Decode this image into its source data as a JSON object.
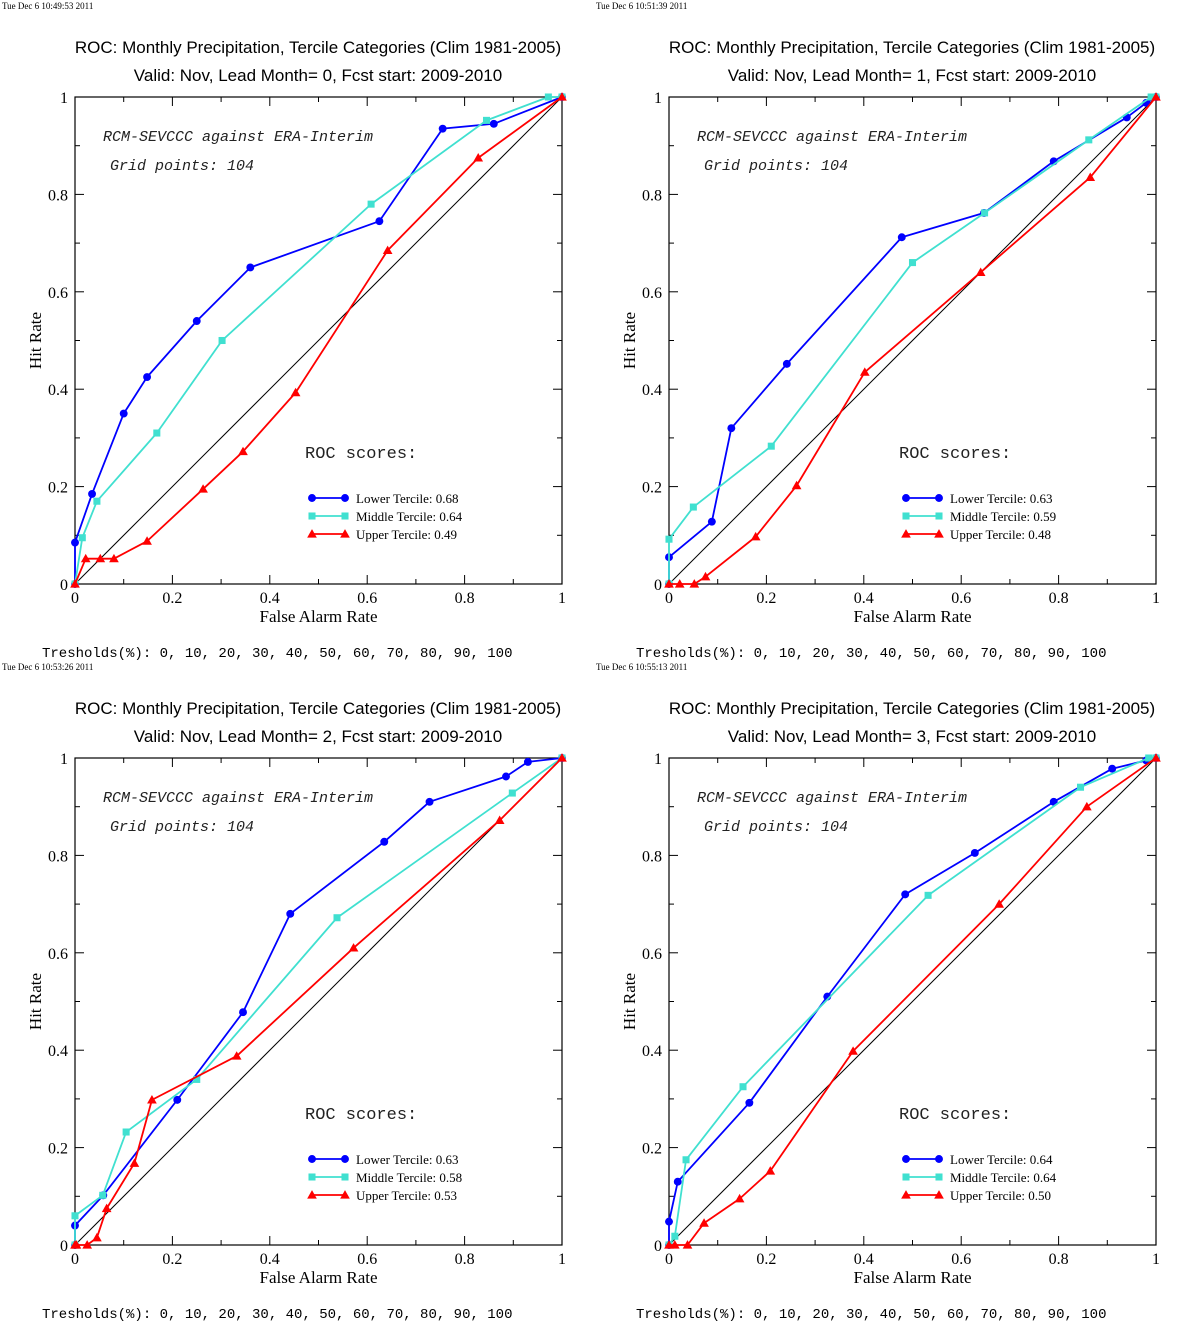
{
  "colors": {
    "lower": "#0000ff",
    "middle": "#40e0d0",
    "upper": "#ff0000",
    "diagonal": "#000000",
    "frame": "#000000",
    "background": "#ffffff"
  },
  "marker_icons": {
    "lower": "circle-marker-icon",
    "middle": "square-marker-icon",
    "upper": "triangle-marker-icon"
  },
  "chart_data": [
    {
      "type": "line",
      "timestamp": "Tue Dec  6 10:49:53 2011",
      "title": "ROC: Monthly Precipitation, Tercile Categories (Clim 1981-2005)",
      "subtitle": "Valid: Nov, Lead Month= 0, Fcst start: 2009-2010",
      "xlabel": "False Alarm Rate",
      "ylabel": "Hit Rate",
      "xlim": [
        0,
        1
      ],
      "ylim": [
        0,
        1
      ],
      "xticks": [
        "0",
        "0.2",
        "0.4",
        "0.6",
        "0.8",
        "1"
      ],
      "yticks": [
        "0",
        "0.2",
        "0.4",
        "0.6",
        "0.8",
        "1"
      ],
      "grid": false,
      "legend_position": "bottom-right",
      "annotation_model": "RCM-SEVCCC against ERA-Interim",
      "annotation_grid": "Grid points:  104",
      "annotation_scores": "ROC scores:",
      "footer": "Tresholds(%): 0, 10, 20, 30, 40, 50, 60, 70, 80, 90, 100",
      "series": [
        {
          "key": "lower",
          "name": "Lower Tercile: 0.68",
          "marker": "circle",
          "x": [
            0,
            0,
            0.035,
            0.1,
            0.148,
            0.25,
            0.36,
            0.625,
            0.755,
            0.86,
            1
          ],
          "y": [
            0,
            0.085,
            0.185,
            0.35,
            0.425,
            0.54,
            0.65,
            0.745,
            0.935,
            0.945,
            1
          ]
        },
        {
          "key": "middle",
          "name": "Middle Tercile: 0.64",
          "marker": "square",
          "x": [
            0,
            0.015,
            0.045,
            0.168,
            0.302,
            0.608,
            0.845,
            0.972,
            1
          ],
          "y": [
            0,
            0.095,
            0.17,
            0.31,
            0.5,
            0.78,
            0.952,
            1,
            1
          ],
          "x_note": "middle"
        },
        {
          "key": "upper",
          "name": "Upper Tercile: 0.49",
          "marker": "triangle",
          "x": [
            0,
            0.022,
            0.052,
            0.08,
            0.148,
            0.263,
            0.345,
            0.453,
            0.642,
            0.828,
            1
          ],
          "y": [
            0,
            0.052,
            0.052,
            0.052,
            0.088,
            0.195,
            0.272,
            0.393,
            0.685,
            0.875,
            1
          ]
        }
      ]
    },
    {
      "type": "line",
      "timestamp": "Tue Dec  6 10:51:39 2011",
      "title": "ROC: Monthly Precipitation, Tercile Categories (Clim 1981-2005)",
      "subtitle": "Valid: Nov, Lead Month= 1, Fcst start: 2009-2010",
      "xlabel": "False Alarm Rate",
      "ylabel": "Hit Rate",
      "xlim": [
        0,
        1
      ],
      "ylim": [
        0,
        1
      ],
      "xticks": [
        "0",
        "0.2",
        "0.4",
        "0.6",
        "0.8",
        "1"
      ],
      "yticks": [
        "0",
        "0.2",
        "0.4",
        "0.6",
        "0.8",
        "1"
      ],
      "grid": false,
      "legend_position": "bottom-right",
      "annotation_model": "RCM-SEVCCC against ERA-Interim",
      "annotation_grid": "Grid points:  104",
      "annotation_scores": "ROC scores:",
      "footer": "Tresholds(%): 0, 10, 20, 30, 40, 50, 60, 70, 80, 90, 100",
      "series": [
        {
          "key": "lower",
          "name": "Lower Tercile: 0.63",
          "marker": "circle",
          "x": [
            0,
            0,
            0.088,
            0.128,
            0.242,
            0.478,
            0.647,
            0.79,
            0.94,
            0.98,
            1
          ],
          "y": [
            0,
            0.055,
            0.128,
            0.32,
            0.452,
            0.712,
            0.762,
            0.868,
            0.958,
            0.988,
            1
          ]
        },
        {
          "key": "middle",
          "name": "Middle Tercile: 0.59",
          "marker": "square",
          "x": [
            0,
            0,
            0.05,
            0.21,
            0.5,
            0.648,
            0.862,
            0.99,
            1
          ],
          "y": [
            0,
            0.092,
            0.158,
            0.283,
            0.66,
            0.762,
            0.912,
            1,
            1
          ]
        },
        {
          "key": "upper",
          "name": "Upper Tercile: 0.48",
          "marker": "triangle",
          "x": [
            0,
            0.022,
            0.052,
            0.075,
            0.178,
            0.262,
            0.402,
            0.64,
            0.865,
            1
          ],
          "y": [
            0,
            0,
            0,
            0.015,
            0.097,
            0.202,
            0.435,
            0.64,
            0.835,
            1
          ]
        }
      ]
    },
    {
      "type": "line",
      "timestamp": "Tue Dec  6 10:53:26 2011",
      "title": "ROC: Monthly Precipitation, Tercile Categories (Clim 1981-2005)",
      "subtitle": "Valid: Nov, Lead Month= 2, Fcst start: 2009-2010",
      "xlabel": "False Alarm Rate",
      "ylabel": "Hit Rate",
      "xlim": [
        0,
        1
      ],
      "ylim": [
        0,
        1
      ],
      "xticks": [
        "0",
        "0.2",
        "0.4",
        "0.6",
        "0.8",
        "1"
      ],
      "yticks": [
        "0",
        "0.2",
        "0.4",
        "0.6",
        "0.8",
        "1"
      ],
      "grid": false,
      "legend_position": "bottom-right",
      "annotation_model": "RCM-SEVCCC against ERA-Interim",
      "annotation_grid": "Grid points:  104",
      "annotation_scores": "ROC scores:",
      "footer": "Tresholds(%): 0, 10, 20, 30, 40, 50, 60, 70, 80, 90, 100",
      "series": [
        {
          "key": "lower",
          "name": "Lower Tercile: 0.63",
          "marker": "circle",
          "x": [
            0,
            0,
            0.058,
            0.21,
            0.345,
            0.442,
            0.635,
            0.728,
            0.885,
            0.93,
            1
          ],
          "y": [
            0,
            0.04,
            0.102,
            0.298,
            0.478,
            0.68,
            0.828,
            0.91,
            0.962,
            0.992,
            1
          ]
        },
        {
          "key": "middle",
          "name": "Middle Tercile: 0.58",
          "marker": "square",
          "x": [
            0,
            0,
            0.057,
            0.105,
            0.25,
            0.538,
            0.898,
            1
          ],
          "y": [
            0,
            0.06,
            0.102,
            0.232,
            0.34,
            0.672,
            0.928,
            1
          ]
        },
        {
          "key": "upper",
          "name": "Upper Tercile: 0.53",
          "marker": "triangle",
          "x": [
            0,
            0.003,
            0.025,
            0.045,
            0.065,
            0.122,
            0.158,
            0.332,
            0.572,
            0.872,
            1
          ],
          "y": [
            0,
            0,
            0,
            0.015,
            0.075,
            0.168,
            0.298,
            0.388,
            0.61,
            0.872,
            1
          ]
        }
      ]
    },
    {
      "type": "line",
      "timestamp": "Tue Dec  6 10:55:13 2011",
      "title": "ROC: Monthly Precipitation, Tercile Categories (Clim 1981-2005)",
      "subtitle": "Valid: Nov, Lead Month= 3, Fcst start: 2009-2010",
      "xlabel": "False Alarm Rate",
      "ylabel": "Hit Rate",
      "xlim": [
        0,
        1
      ],
      "ylim": [
        0,
        1
      ],
      "xticks": [
        "0",
        "0.2",
        "0.4",
        "0.6",
        "0.8",
        "1"
      ],
      "yticks": [
        "0",
        "0.2",
        "0.4",
        "0.6",
        "0.8",
        "1"
      ],
      "grid": false,
      "legend_position": "bottom-right",
      "annotation_model": "RCM-SEVCCC against ERA-Interim",
      "annotation_grid": "Grid points:  104",
      "annotation_scores": "ROC scores:",
      "footer": "Tresholds(%): 0, 10, 20, 30, 40, 50, 60, 70, 80, 90, 100",
      "series": [
        {
          "key": "lower",
          "name": "Lower Tercile: 0.64",
          "marker": "circle",
          "x": [
            0,
            0,
            0.018,
            0.165,
            0.325,
            0.485,
            0.628,
            0.79,
            0.91,
            0.98,
            1
          ],
          "y": [
            0,
            0.048,
            0.13,
            0.292,
            0.51,
            0.72,
            0.805,
            0.91,
            0.978,
            0.995,
            1
          ]
        },
        {
          "key": "middle",
          "name": "Middle Tercile: 0.64",
          "marker": "square",
          "x": [
            0,
            0.012,
            0.035,
            0.152,
            0.532,
            0.845,
            0.985,
            1
          ],
          "y": [
            0,
            0.018,
            0.175,
            0.325,
            0.718,
            0.94,
            1,
            1
          ]
        },
        {
          "key": "upper",
          "name": "Upper Tercile: 0.50",
          "marker": "triangle",
          "x": [
            0,
            0.012,
            0.038,
            0.072,
            0.145,
            0.208,
            0.378,
            0.678,
            0.858,
            1
          ],
          "y": [
            0,
            0,
            0,
            0.045,
            0.095,
            0.152,
            0.398,
            0.7,
            0.9,
            1
          ]
        }
      ]
    }
  ]
}
